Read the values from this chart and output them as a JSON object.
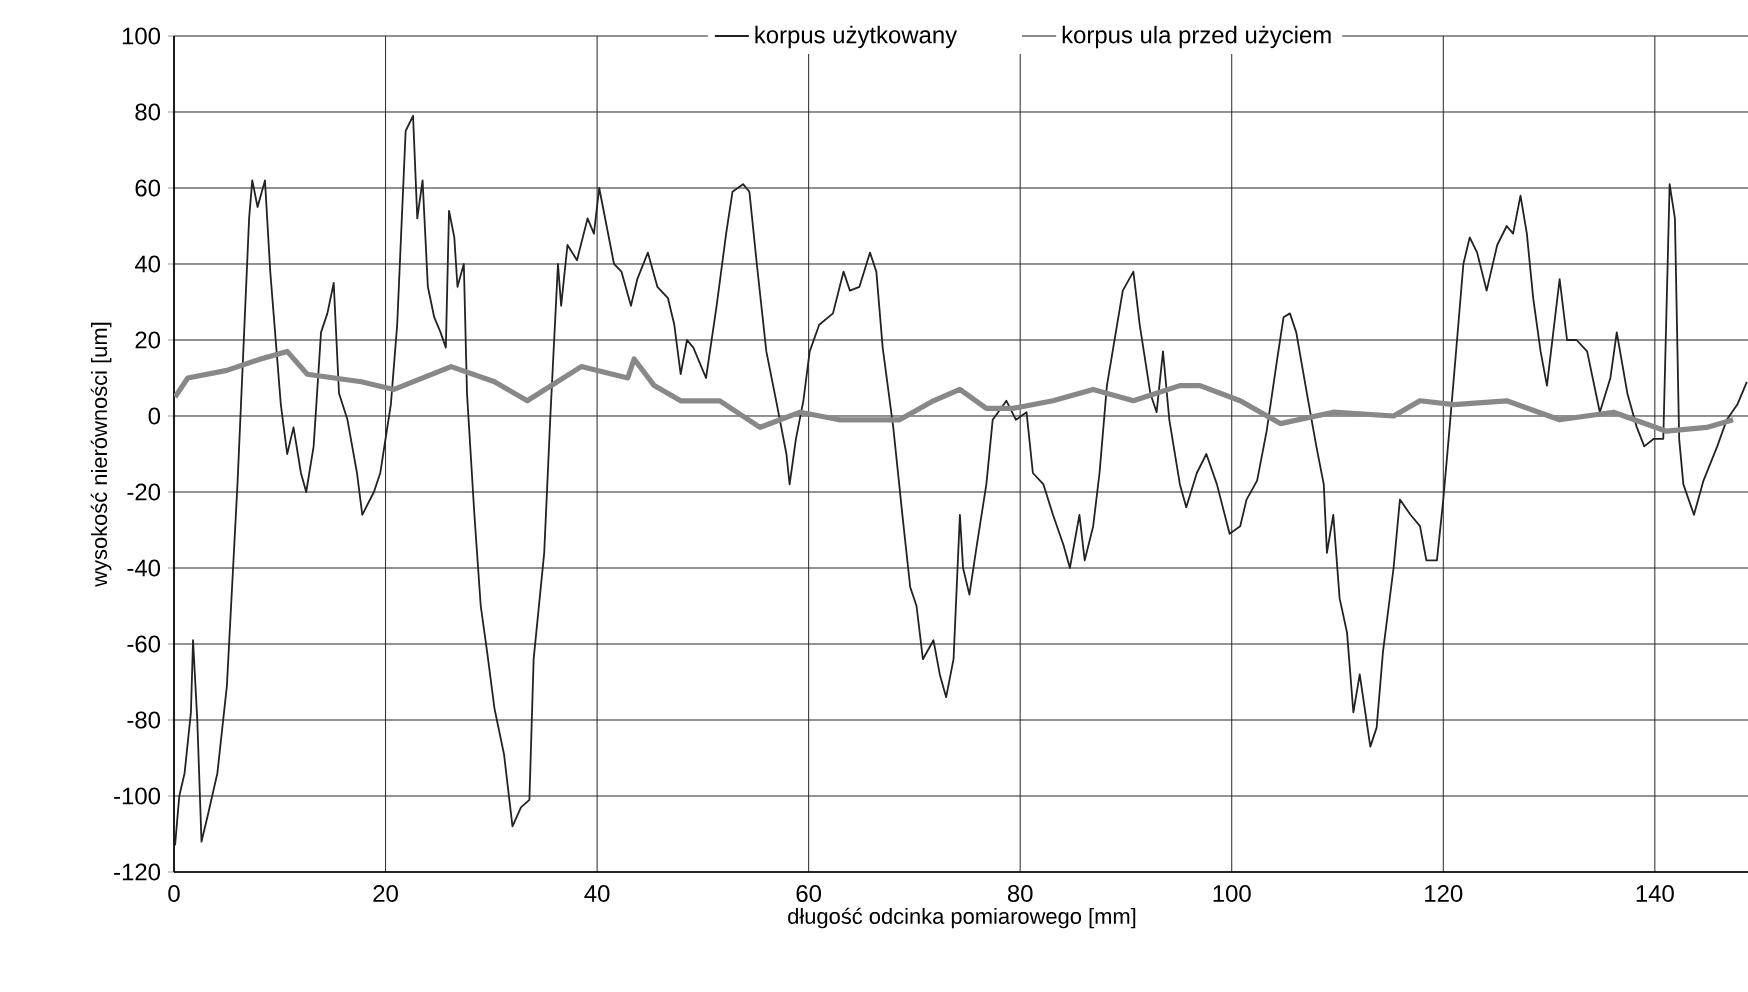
{
  "chart_data": {
    "type": "line",
    "xlabel": "długość odcinka pomiarowego [mm]",
    "ylabel": "wysokość nierówności [um]",
    "xlim": [
      0,
      149
    ],
    "xticks": [
      0,
      20,
      40,
      60,
      80,
      100,
      120,
      140
    ],
    "ylim": [
      -120,
      100
    ],
    "yticks": [
      -120,
      -100,
      -80,
      -60,
      -40,
      -20,
      0,
      20,
      40,
      60,
      80,
      100
    ],
    "grid": true,
    "legend": "top",
    "line_style": "solid",
    "marker": "none",
    "series": [
      {
        "name": "korpus użytkowany",
        "color": "#222222",
        "x": [
          0.1,
          0.5,
          1,
          1.6,
          1.8,
          2.2,
          2.6,
          3.2,
          4.1,
          5,
          6,
          6.6,
          7.1,
          7.4,
          7.9,
          8.6,
          9.1,
          10.1,
          10.7,
          11.3,
          12,
          12.5,
          13.2,
          13.9,
          14.5,
          15.1,
          15.6,
          16.4,
          17.3,
          17.8,
          18.9,
          19.5,
          20.5,
          21.1,
          21.9,
          22.6,
          23,
          23.5,
          24,
          24.6,
          25.2,
          25.7,
          26,
          26.5,
          26.8,
          27.4,
          27.7,
          28.4,
          29,
          29.6,
          30.3,
          31.2,
          32,
          32.8,
          33.6,
          34,
          35,
          35.6,
          36.3,
          36.6,
          37.2,
          38.1,
          39.1,
          39.7,
          40.2,
          40.9,
          41.6,
          42.3,
          43.2,
          43.8,
          44.8,
          45.7,
          46.7,
          47.3,
          47.9,
          48.5,
          49.1,
          50.3,
          51.3,
          52.2,
          52.8,
          53.8,
          54.4,
          55.1,
          56,
          57,
          57.9,
          58.2,
          58.8,
          59.5,
          60.1,
          61,
          62.3,
          63.3,
          63.9,
          64.8,
          65.8,
          66.4,
          67,
          68,
          68.9,
          69.6,
          70.2,
          70.8,
          71.8,
          72.4,
          73,
          73.7,
          74.3,
          74.6,
          75.2,
          75.9,
          76.8,
          77.4,
          78.7,
          79.6,
          80.6,
          81.2,
          82.2,
          83.1,
          84.1,
          84.7,
          85.6,
          86.1,
          86.9,
          87.5,
          88.2,
          88.8,
          89.7,
          90.7,
          91.3,
          92.3,
          92.9,
          93.5,
          94.1,
          95.1,
          95.7,
          96.7,
          97.6,
          98.6,
          99.8,
          100.8,
          101.4,
          102.4,
          103.3,
          104.3,
          104.9,
          105.5,
          106.1,
          107.1,
          108,
          108.7,
          109,
          109.6,
          110.2,
          110.9,
          111.5,
          112.1,
          113.1,
          113.7,
          114.3,
          115.3,
          115.9,
          116.9,
          117.8,
          118.4,
          119.4,
          120,
          120.6,
          121.3,
          121.9,
          122.5,
          123.2,
          124.1,
          125.1,
          126,
          126.6,
          127.3,
          127.9,
          128.5,
          129.2,
          129.8,
          130.4,
          131,
          131.7,
          132.6,
          133.6,
          134.8,
          135.8,
          136.4,
          137.4,
          138.3,
          139,
          139.9,
          140.8,
          141.4,
          141.9,
          142.3,
          142.7,
          143.7,
          144.6,
          145.9,
          146.8,
          147.8,
          148.7
        ],
        "values": [
          -113,
          -100,
          -94,
          -78,
          -59,
          -80,
          -112,
          -105,
          -94,
          -71,
          -18,
          20,
          52,
          62,
          55,
          62,
          38,
          3,
          -10,
          -3,
          -15,
          -20,
          -8,
          22,
          27,
          35,
          6,
          -1,
          -15,
          -26,
          -20,
          -15,
          3,
          24,
          75,
          79,
          52,
          62,
          34,
          26,
          22,
          18,
          54,
          47,
          34,
          40,
          6,
          -26,
          -50,
          -62,
          -77,
          -89,
          -108,
          -103,
          -101,
          -64,
          -36,
          1,
          40,
          29,
          45,
          41,
          52,
          48,
          60,
          50,
          40,
          38,
          29,
          36,
          43,
          34,
          31,
          24,
          11,
          20,
          18,
          10,
          29,
          48,
          59,
          61,
          59,
          40,
          17,
          3,
          -10,
          -18,
          -6,
          4,
          17,
          24,
          27,
          38,
          33,
          34,
          43,
          38,
          18,
          -3,
          -27,
          -45,
          -50,
          -64,
          -59,
          -68,
          -74,
          -64,
          -26,
          -40,
          -47,
          -34,
          -18,
          -1,
          4,
          -1,
          1,
          -15,
          -18,
          -26,
          -34,
          -40,
          -26,
          -38,
          -29,
          -15,
          8,
          18,
          33,
          38,
          24,
          6,
          1,
          17,
          -1,
          -18,
          -24,
          -15,
          -10,
          -18,
          -31,
          -29,
          -22,
          -17,
          -4,
          15,
          26,
          27,
          22,
          6,
          -8,
          -18,
          -36,
          -26,
          -48,
          -57,
          -78,
          -68,
          -87,
          -82,
          -62,
          -40,
          -22,
          -26,
          -29,
          -38,
          -38,
          -22,
          -3,
          20,
          40,
          47,
          43,
          33,
          45,
          50,
          48,
          58,
          48,
          31,
          17,
          8,
          22,
          36,
          20,
          20,
          17,
          1,
          10,
          22,
          6,
          -3,
          -8,
          -6,
          -6,
          61,
          52,
          -6,
          -18,
          -26,
          -17,
          -8,
          -1,
          3,
          9
        ]
      },
      {
        "name": "korpus ula przed użyciem",
        "color": "#888888",
        "x": [
          0.1,
          1.3,
          5,
          8.2,
          10.7,
          12.6,
          17.7,
          20.8,
          26.2,
          30.3,
          33.4,
          38.5,
          42.9,
          43.5,
          45.4,
          47.9,
          51.6,
          55.4,
          59.2,
          62.9,
          68.6,
          71.8,
          74.3,
          76.8,
          79.3,
          83.1,
          86.9,
          90.7,
          95.1,
          97,
          100.8,
          104.6,
          109.6,
          115.3,
          117.8,
          121,
          126,
          131,
          136.1,
          141.1,
          144.9,
          147.4
        ],
        "values": [
          5,
          10,
          12,
          15,
          17,
          11,
          9,
          7,
          13,
          9,
          4,
          13,
          10,
          15,
          8,
          4,
          4,
          -3,
          1,
          -1,
          -1,
          4,
          7,
          2,
          2,
          4,
          7,
          4,
          8,
          8,
          4,
          -2,
          1,
          0,
          4,
          3,
          4,
          -1,
          1,
          -4,
          -3,
          -1
        ]
      }
    ]
  }
}
